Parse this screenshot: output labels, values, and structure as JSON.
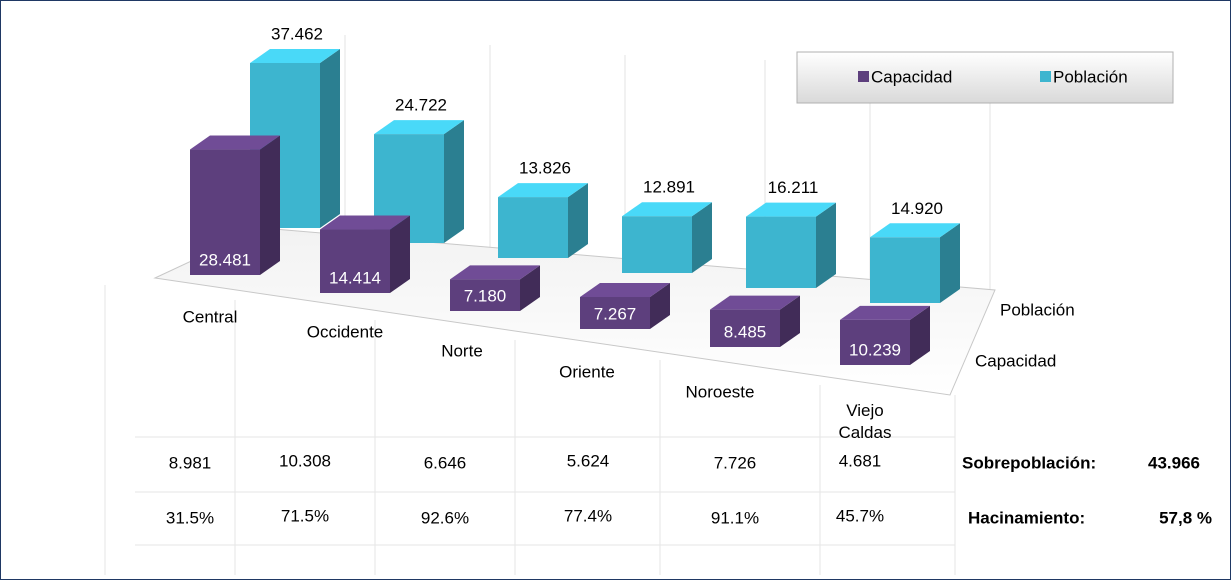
{
  "chart_data": {
    "type": "bar3d",
    "categories": [
      "Central",
      "Occidente",
      "Norte",
      "Oriente",
      "Noroeste",
      "Viejo Caldas"
    ],
    "series": [
      {
        "name": "Capacidad",
        "color": "#5d3f7d",
        "values": [
          28481,
          14414,
          7180,
          7267,
          8485,
          10239
        ],
        "value_labels": [
          "28.481",
          "14.414",
          "7.180",
          "7.267",
          "8.485",
          "10.239"
        ]
      },
      {
        "name": "Población",
        "color": "#3db5cf",
        "values": [
          37462,
          24722,
          13826,
          12891,
          16211,
          14920
        ],
        "value_labels": [
          "37.462",
          "24.722",
          "13.826",
          "12.891",
          "16.211",
          "14.920"
        ]
      }
    ],
    "legend": "top-right"
  },
  "table": {
    "rows": [
      [
        "8.981",
        "10.308",
        "6.646",
        "5.624",
        "7.726",
        "4.681"
      ],
      [
        "31.5%",
        "71.5%",
        "92.6%",
        "77.4%",
        "91.1%",
        "45.7%"
      ]
    ],
    "summary": [
      {
        "label": "Sobrepoblación:",
        "value": "43.966"
      },
      {
        "label": "Hacinamiento:",
        "value": "57,8 %"
      }
    ]
  }
}
